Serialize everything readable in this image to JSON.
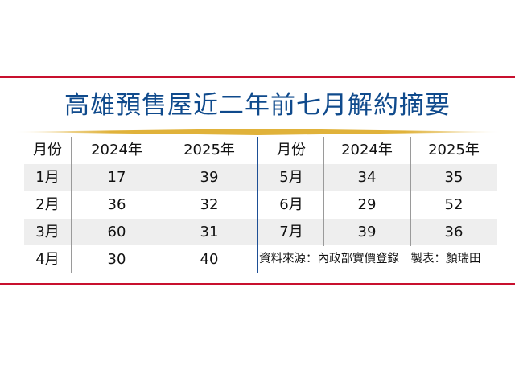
{
  "title": "高雄預售屋近二年前七月解約摘要",
  "chart_data": {
    "type": "table",
    "headers": [
      "月份",
      "2024年",
      "2025年"
    ],
    "left": [
      {
        "month": "1月",
        "y2024": "17",
        "y2025": "39"
      },
      {
        "month": "2月",
        "y2024": "36",
        "y2025": "32"
      },
      {
        "month": "3月",
        "y2024": "60",
        "y2025": "31"
      },
      {
        "month": "4月",
        "y2024": "30",
        "y2025": "40"
      }
    ],
    "right": [
      {
        "month": "5月",
        "y2024": "34",
        "y2025": "35"
      },
      {
        "month": "6月",
        "y2024": "29",
        "y2025": "52"
      },
      {
        "month": "7月",
        "y2024": "39",
        "y2025": "36"
      }
    ]
  },
  "source": "資料來源：內政部實價登錄　製表：顏瑞田",
  "colors": {
    "title": "#0f4a8c",
    "rule": "#c8102e",
    "divider": "#1d4f95",
    "shade": "#eeeeee"
  }
}
